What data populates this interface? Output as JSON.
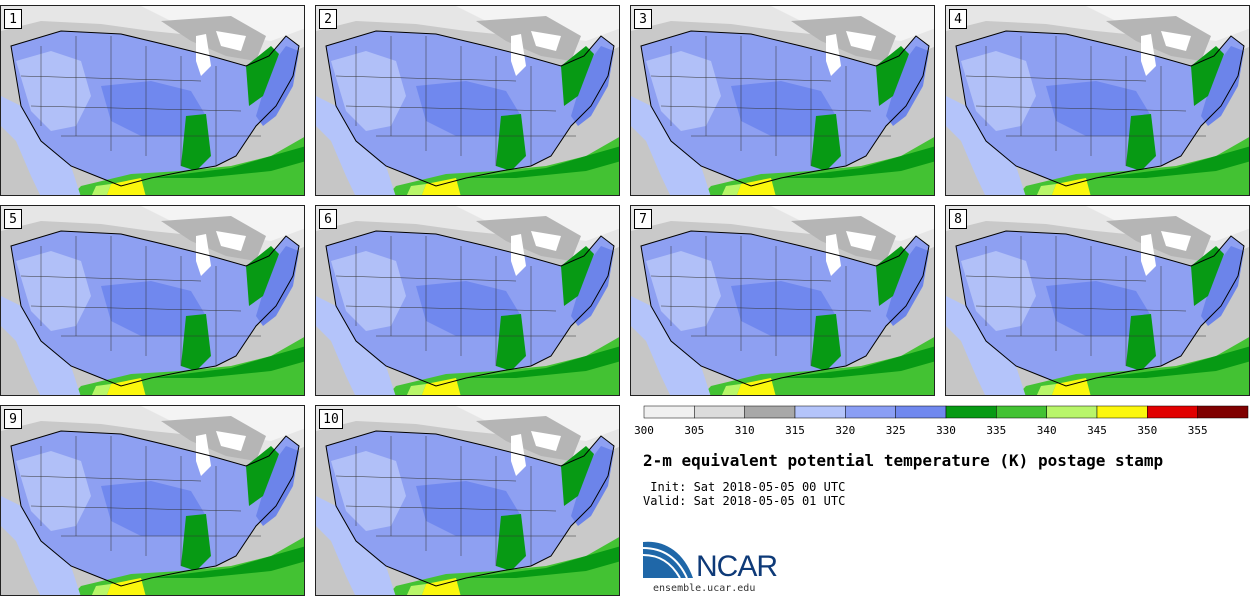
{
  "panels": [
    {
      "label": "1"
    },
    {
      "label": "2"
    },
    {
      "label": "3"
    },
    {
      "label": "4"
    },
    {
      "label": "5"
    },
    {
      "label": "6"
    },
    {
      "label": "7"
    },
    {
      "label": "8"
    },
    {
      "label": "9"
    },
    {
      "label": "10"
    }
  ],
  "colorbar": {
    "ticks": [
      "300",
      "305",
      "310",
      "315",
      "320",
      "325",
      "330",
      "335",
      "340",
      "345",
      "350",
      "355"
    ],
    "colors": [
      "#f0f0f0",
      "#dcdcdc",
      "#a8a8a8",
      "#b4c4fa",
      "#8a9ef4",
      "#7088ee",
      "#079a14",
      "#43c233",
      "#b8f56a",
      "#fbf70e",
      "#e10000",
      "#7f0000"
    ]
  },
  "title": "2-m equivalent potential temperature (K) postage stamp",
  "init_line": " Init: Sat 2018-05-05 00 UTC",
  "valid_line": "Valid: Sat 2018-05-05 01 UTC",
  "logo": {
    "text": "NCAR",
    "website": "ensemble.ucar.edu"
  }
}
